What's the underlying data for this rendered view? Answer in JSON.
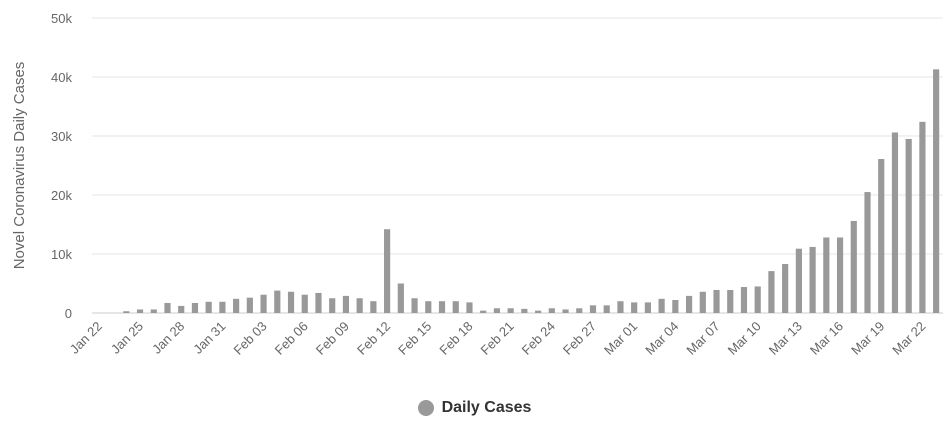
{
  "chart_data": {
    "type": "bar",
    "title": "",
    "xlabel": "",
    "ylabel": "Novel Coronavirus Daily Cases",
    "ylim": [
      0,
      50000
    ],
    "yticks": [
      0,
      10000,
      20000,
      30000,
      40000,
      50000
    ],
    "ytick_labels": [
      "0",
      "10k",
      "20k",
      "30k",
      "40k",
      "50k"
    ],
    "xtick_labels": [
      "Jan 22",
      "Jan 25",
      "Jan 28",
      "Jan 31",
      "Feb 03",
      "Feb 06",
      "Feb 09",
      "Feb 12",
      "Feb 15",
      "Feb 18",
      "Feb 21",
      "Feb 24",
      "Feb 27",
      "Mar 01",
      "Mar 04",
      "Mar 07",
      "Mar 10",
      "Mar 13",
      "Mar 16",
      "Mar 19",
      "Mar 22"
    ],
    "grid": true,
    "legend_position": "bottom-center",
    "bar_color": "#999999",
    "categories": [
      "Jan 22",
      "Jan 23",
      "Jan 24",
      "Jan 25",
      "Jan 26",
      "Jan 27",
      "Jan 28",
      "Jan 29",
      "Jan 30",
      "Jan 31",
      "Feb 01",
      "Feb 02",
      "Feb 03",
      "Feb 04",
      "Feb 05",
      "Feb 06",
      "Feb 07",
      "Feb 08",
      "Feb 09",
      "Feb 10",
      "Feb 11",
      "Feb 12",
      "Feb 13",
      "Feb 14",
      "Feb 15",
      "Feb 16",
      "Feb 17",
      "Feb 18",
      "Feb 19",
      "Feb 20",
      "Feb 21",
      "Feb 22",
      "Feb 23",
      "Feb 24",
      "Feb 25",
      "Feb 26",
      "Feb 27",
      "Feb 28",
      "Feb 29",
      "Mar 01",
      "Mar 02",
      "Mar 03",
      "Mar 04",
      "Mar 05",
      "Mar 06",
      "Mar 07",
      "Mar 08",
      "Mar 09",
      "Mar 10",
      "Mar 11",
      "Mar 12",
      "Mar 13",
      "Mar 14",
      "Mar 15",
      "Mar 16",
      "Mar 17",
      "Mar 18",
      "Mar 19",
      "Mar 20",
      "Mar 21",
      "Mar 22",
      "Mar 23"
    ],
    "series": [
      {
        "name": "Daily Cases",
        "values": [
          0,
          0,
          300,
          600,
          600,
          1700,
          1200,
          1700,
          1900,
          1900,
          2400,
          2600,
          3100,
          3800,
          3600,
          3100,
          3400,
          2500,
          2900,
          2500,
          2000,
          14200,
          5000,
          2500,
          2000,
          2000,
          2000,
          1800,
          400,
          800,
          800,
          700,
          400,
          800,
          600,
          800,
          1300,
          1300,
          2000,
          1800,
          1800,
          2400,
          2200,
          2900,
          3600,
          3900,
          3900,
          4400,
          4500,
          7100,
          8300,
          10900,
          11200,
          12800,
          12800,
          15600,
          20500,
          26100,
          30600,
          29500,
          32400,
          41300
        ]
      }
    ]
  },
  "legend": {
    "label": "Daily Cases"
  }
}
